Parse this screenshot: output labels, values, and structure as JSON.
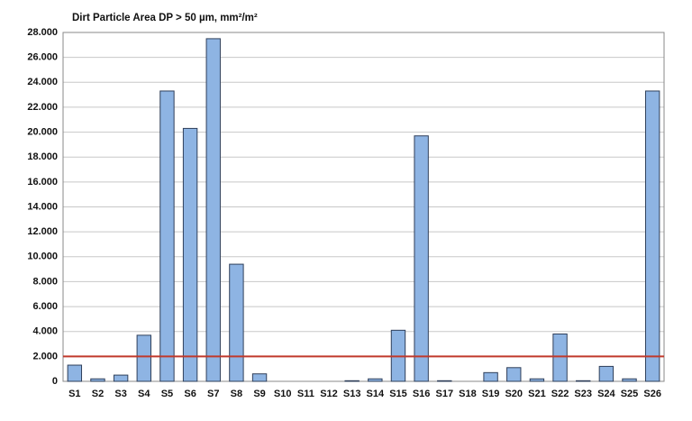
{
  "chart_data": {
    "type": "bar",
    "title": "Dirt Particle Area DP > 50 µm, mm²/m²",
    "categories": [
      "S1",
      "S2",
      "S3",
      "S4",
      "S5",
      "S6",
      "S7",
      "S8",
      "S9",
      "S10",
      "S11",
      "S12",
      "S13",
      "S14",
      "S15",
      "S16",
      "S17",
      "S18",
      "S19",
      "S20",
      "S21",
      "S22",
      "S23",
      "S24",
      "S25",
      "S26"
    ],
    "values": [
      1300,
      200,
      500,
      3700,
      23300,
      20300,
      27500,
      9400,
      600,
      0,
      0,
      0,
      50,
      200,
      4100,
      19700,
      50,
      0,
      700,
      1100,
      200,
      3800,
      50,
      1200,
      200,
      23300
    ],
    "color": "#8eb4e3",
    "ylim": [
      0,
      28000
    ],
    "yticks": [
      0,
      {
        "value": 2000,
        "label": "2.000"
      },
      {
        "value": 4000,
        "label": "4.000"
      },
      {
        "value": 6000,
        "label": "6.000"
      },
      {
        "value": 8000,
        "label": "8.000"
      },
      {
        "value": 10000,
        "label": "10.000"
      },
      {
        "value": 12000,
        "label": "12.000"
      },
      {
        "value": 14000,
        "label": "14.000"
      },
      {
        "value": 16000,
        "label": "16.000"
      },
      {
        "value": 18000,
        "label": "18.000"
      },
      {
        "value": 20000,
        "label": "20.000"
      },
      {
        "value": 22000,
        "label": "22.000"
      },
      {
        "value": 24000,
        "label": "24.000"
      },
      {
        "value": 26000,
        "label": "26.000"
      },
      {
        "value": 28000,
        "label": "28.000"
      }
    ],
    "grid": true,
    "threshold": 2000,
    "threshold_color": "#c0392b"
  }
}
